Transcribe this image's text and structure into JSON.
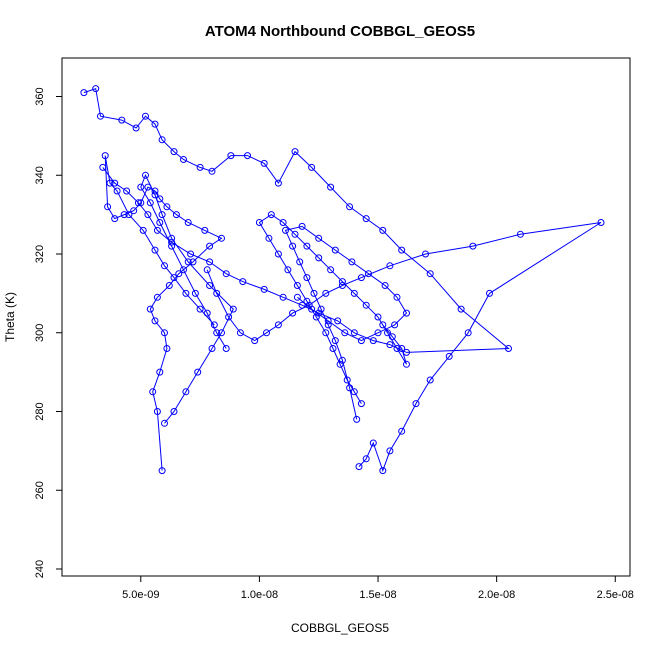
{
  "chart_data": {
    "type": "line",
    "title": "ATOM4 Northbound COBBGL_GEOS5",
    "xlabel": "COBBGL_GEOS5",
    "ylabel": "Theta (K)",
    "xlim": [
      2.1e-09,
      2.52e-08
    ],
    "ylim": [
      240,
      368
    ],
    "x_ticks": [
      5e-09,
      1e-08,
      1.5e-08,
      2e-08,
      2.5e-08
    ],
    "x_tick_labels": [
      "5.0e-09",
      "1.0e-08",
      "1.5e-08",
      "2.0e-08",
      "2.5e-08"
    ],
    "y_ticks": [
      240,
      260,
      280,
      300,
      320,
      340,
      360
    ],
    "y_tick_labels": [
      "240",
      "260",
      "280",
      "300",
      "320",
      "340",
      "360"
    ],
    "grid": false,
    "marker": "open-circle",
    "color": "#0000ff",
    "series": [
      {
        "x": [
          2.6e-09,
          3.1e-09,
          3.3e-09,
          4.2e-09,
          4.8e-09,
          5.2e-09,
          5.6e-09,
          5.9e-09,
          6.4e-09,
          6.8e-09,
          7.5e-09,
          8e-09,
          8.8e-09,
          9.5e-09,
          1.02e-08,
          1.08e-08,
          1.15e-08,
          1.22e-08,
          1.3e-08,
          1.38e-08,
          1.45e-08,
          1.52e-08,
          1.6e-08,
          1.72e-08,
          1.85e-08,
          2.05e-08,
          1.62e-08,
          1.55e-08,
          1.48e-08,
          1.4e-08,
          1.33e-08,
          1.25e-08,
          1.18e-08,
          1.1e-08,
          1.02e-08,
          9.3e-09,
          8.6e-09,
          7.9e-09,
          7.1e-09,
          6.3e-09,
          5.7e-09,
          5.3e-09,
          4.9e-09,
          4.4e-09,
          3.9e-09,
          3.4e-09
        ],
        "y": [
          361,
          362,
          355,
          354,
          352,
          355,
          353,
          349,
          346,
          344,
          342,
          341,
          345,
          345,
          343,
          338,
          346,
          342,
          337,
          332,
          329,
          326,
          321,
          315,
          306,
          296,
          295,
          297,
          298,
          300,
          303,
          305,
          307,
          309,
          311,
          313,
          315,
          318,
          320,
          323,
          326,
          330,
          333,
          336,
          338,
          342
        ]
      },
      {
        "x": [
          5.9e-09,
          5.7e-09,
          5.5e-09,
          5.8e-09,
          6.1e-09,
          6e-09,
          5.6e-09,
          5.4e-09,
          5.7e-09,
          6.2e-09,
          6.6e-09,
          7.2e-09,
          7.9e-09,
          8.4e-09,
          7.7e-09,
          7e-09,
          6.5e-09,
          6.1e-09,
          5.8e-09,
          5.6e-09,
          5.3e-09,
          5e-09,
          4.7e-09,
          4.3e-09,
          3.9e-09,
          3.6e-09,
          3.5e-09,
          3.7e-09,
          4e-09,
          4.5e-09,
          5.1e-09,
          5.6e-09,
          6e-09,
          6.4e-09,
          6.9e-09,
          7.5e-09,
          8.1e-09
        ],
        "y": [
          265,
          280,
          285,
          290,
          296,
          300,
          303,
          306,
          309,
          312,
          315,
          318,
          322,
          324,
          326,
          328,
          330,
          332,
          334,
          336,
          337,
          333,
          331,
          330,
          329,
          332,
          345,
          338,
          336,
          330,
          326,
          321,
          317,
          314,
          310,
          306,
          302
        ]
      },
      {
        "x": [
          6e-09,
          6.4e-09,
          6.9e-09,
          7.4e-09,
          8e-09,
          8.4e-09,
          8.9e-09,
          7.9e-09,
          7e-09,
          6.3e-09,
          5.9e-09,
          5.6e-09,
          5.2e-09,
          5e-09,
          5.4e-09,
          5.8e-09,
          6.3e-09,
          6.8e-09,
          7.3e-09,
          7.8e-09,
          8.2e-09,
          8.6e-09
        ],
        "y": [
          277,
          280,
          285,
          290,
          296,
          300,
          306,
          312,
          318,
          324,
          330,
          335,
          340,
          337,
          333,
          328,
          322,
          316,
          310,
          305,
          300,
          296
        ]
      },
      {
        "x": [
          1.42e-08,
          1.45e-08,
          1.48e-08,
          1.52e-08,
          1.55e-08,
          1.6e-08,
          1.66e-08,
          1.72e-08,
          1.8e-08,
          1.88e-08,
          1.97e-08,
          2.44e-08,
          2.1e-08,
          1.9e-08,
          1.7e-08,
          1.55e-08,
          1.43e-08,
          1.35e-08,
          1.28e-08,
          1.21e-08,
          1.14e-08,
          1.08e-08,
          1.03e-08,
          9.8e-09,
          9.2e-09,
          8.7e-09,
          8.2e-09,
          7.8e-09
        ],
        "y": [
          266,
          268,
          272,
          265,
          270,
          275,
          282,
          288,
          294,
          300,
          310,
          328,
          325,
          322,
          320,
          317,
          314,
          312,
          310,
          307,
          305,
          302,
          300,
          298,
          300,
          304,
          310,
          316
        ]
      },
      {
        "x": [
          1.43e-08,
          1.4e-08,
          1.37e-08,
          1.34e-08,
          1.31e-08,
          1.28e-08,
          1.24e-08,
          1.2e-08,
          1.16e-08,
          1.12e-08,
          1.08e-08,
          1.04e-08,
          1e-08,
          1.05e-08,
          1.1e-08,
          1.15e-08,
          1.2e-08,
          1.25e-08,
          1.3e-08,
          1.35e-08,
          1.4e-08,
          1.45e-08,
          1.5e-08,
          1.54e-08,
          1.58e-08,
          1.62e-08,
          1.6e-08,
          1.56e-08,
          1.52e-08
        ],
        "y": [
          282,
          285,
          288,
          292,
          296,
          300,
          304,
          308,
          312,
          316,
          320,
          324,
          328,
          330,
          328,
          325,
          322,
          319,
          316,
          313,
          310,
          307,
          304,
          300,
          296,
          292,
          296,
          299,
          302
        ]
      },
      {
        "x": [
          1.41e-08,
          1.38e-08,
          1.35e-08,
          1.32e-08,
          1.29e-08,
          1.26e-08,
          1.23e-08,
          1.2e-08,
          1.17e-08,
          1.14e-08,
          1.11e-08,
          1.18e-08,
          1.25e-08,
          1.32e-08,
          1.39e-08,
          1.46e-08,
          1.53e-08,
          1.58e-08,
          1.62e-08,
          1.57e-08,
          1.5e-08,
          1.43e-08,
          1.36e-08,
          1.29e-08,
          1.22e-08,
          1.16e-08
        ],
        "y": [
          278,
          286,
          293,
          298,
          302,
          306,
          310,
          314,
          318,
          322,
          326,
          327,
          324,
          321,
          318,
          315,
          312,
          309,
          305,
          302,
          300,
          298,
          300,
          303,
          306,
          309
        ]
      }
    ]
  }
}
